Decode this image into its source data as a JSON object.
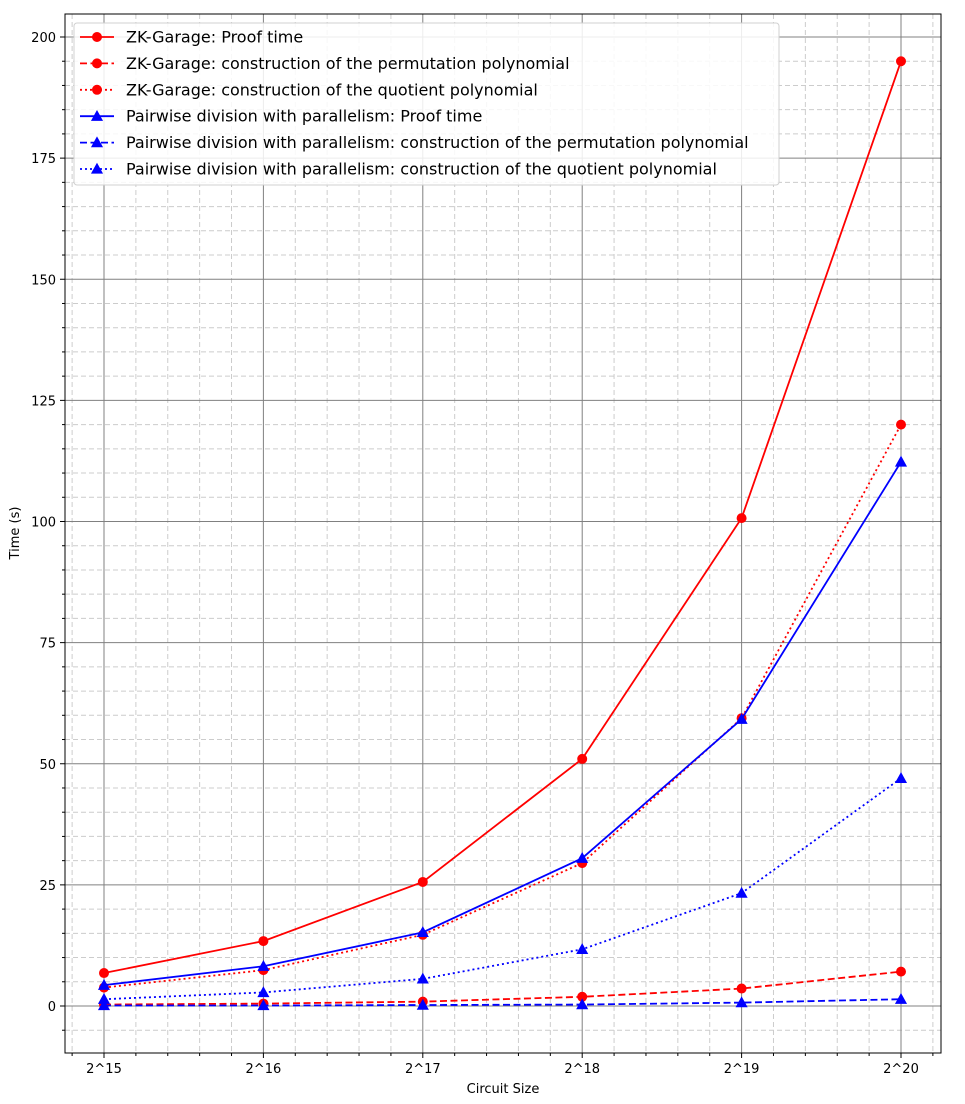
{
  "chart_data": {
    "type": "line",
    "title": "",
    "xlabel": "Circuit Size",
    "ylabel": "Time (s)",
    "categories": [
      "2^15",
      "2^16",
      "2^17",
      "2^18",
      "2^19",
      "2^20"
    ],
    "ylim": [
      -10,
      205
    ],
    "yticks": [
      0,
      25,
      50,
      75,
      100,
      125,
      150,
      175,
      200
    ],
    "grid": true,
    "legend_position": "top-left",
    "series": [
      {
        "name": "ZK-Garage: Proof time",
        "color": "#ff0000",
        "dash": "solid",
        "marker": "circle",
        "values": [
          6.8,
          13.4,
          25.6,
          51.0,
          100.7,
          195.0
        ]
      },
      {
        "name": "ZK-Garage: construction of the permutation polynomial",
        "color": "#ff0000",
        "dash": "dashed",
        "marker": "circle",
        "values": [
          0.3,
          0.5,
          0.9,
          1.9,
          3.6,
          7.1
        ]
      },
      {
        "name": "ZK-Garage: construction of the quotient polynomial",
        "color": "#ff0000",
        "dash": "dotted",
        "marker": "circle",
        "values": [
          3.8,
          7.4,
          14.7,
          29.5,
          59.4,
          120.0
        ]
      },
      {
        "name": "Pairwise division with parallelism: Proof time",
        "color": "#0000ff",
        "dash": "solid",
        "marker": "triangle",
        "values": [
          4.3,
          8.2,
          15.2,
          30.5,
          59.2,
          112.3
        ]
      },
      {
        "name": "Pairwise division with parallelism: construction of the permutation polynomial",
        "color": "#0000ff",
        "dash": "dashed",
        "marker": "triangle",
        "values": [
          0.1,
          0.1,
          0.2,
          0.3,
          0.7,
          1.4
        ]
      },
      {
        "name": "Pairwise division with parallelism: construction of the quotient polynomial",
        "color": "#0000ff",
        "dash": "dotted",
        "marker": "triangle",
        "values": [
          1.4,
          2.8,
          5.6,
          11.7,
          23.3,
          47.0
        ]
      }
    ]
  }
}
